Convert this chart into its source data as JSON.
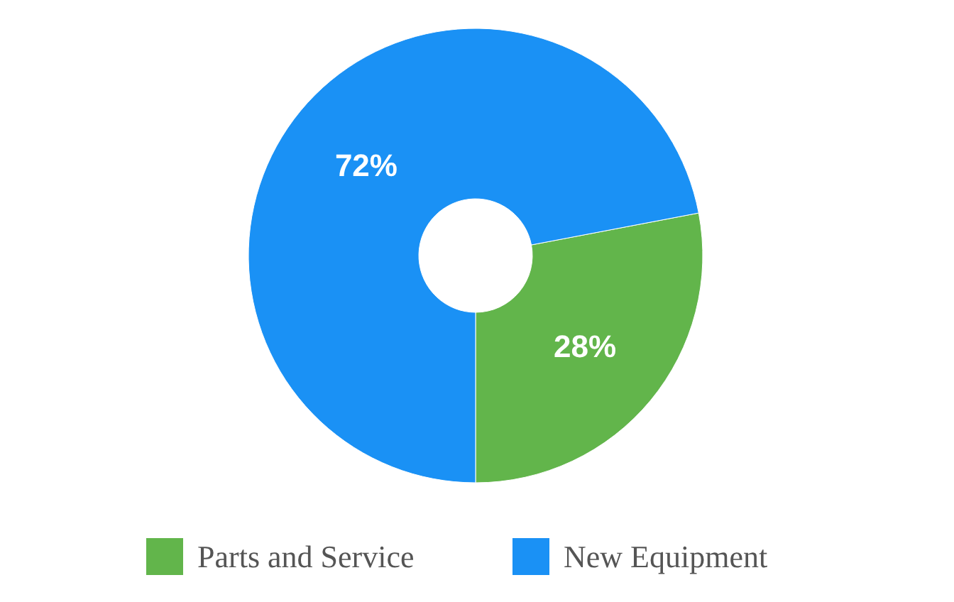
{
  "chart_data": {
    "type": "donut",
    "categories": [
      "Parts and Service",
      "New Equipment"
    ],
    "values": [
      28,
      72
    ],
    "colors": [
      "#62b54b",
      "#1a91f5"
    ],
    "value_labels": [
      "28%",
      "72%"
    ],
    "legend": "bottom"
  }
}
